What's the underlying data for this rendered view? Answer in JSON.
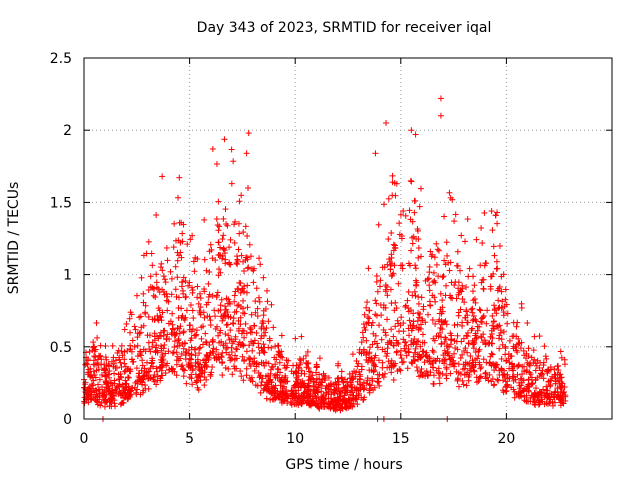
{
  "chart_data": {
    "type": "scatter",
    "title": "Day 343 of 2023, SRMTID for receiver iqal",
    "xlabel": "GPS time / hours",
    "ylabel": "SRMTID / TECUs",
    "xlim": [
      0,
      25
    ],
    "ylim": [
      0,
      2.5
    ],
    "xticks": [
      "0",
      "5",
      "10",
      "15",
      "20"
    ],
    "yticks": [
      "0",
      "0.5",
      "1",
      "1.5",
      "2",
      "2.5"
    ],
    "grid": true,
    "marker": "+",
    "color": "#ff0000",
    "series_name": "SRMTID",
    "density_profile_hours_vs_level": [
      [
        0.0,
        0.26
      ],
      [
        0.5,
        0.3
      ],
      [
        1.0,
        0.22
      ],
      [
        1.5,
        0.24
      ],
      [
        2.0,
        0.28
      ],
      [
        2.5,
        0.38
      ],
      [
        3.0,
        0.52
      ],
      [
        3.5,
        0.62
      ],
      [
        4.0,
        0.7
      ],
      [
        4.5,
        0.78
      ],
      [
        5.0,
        0.64
      ],
      [
        5.5,
        0.52
      ],
      [
        6.0,
        0.72
      ],
      [
        6.5,
        0.82
      ],
      [
        7.0,
        0.78
      ],
      [
        7.5,
        0.74
      ],
      [
        8.0,
        0.66
      ],
      [
        8.5,
        0.42
      ],
      [
        9.0,
        0.3
      ],
      [
        9.5,
        0.26
      ],
      [
        10.0,
        0.25
      ],
      [
        10.5,
        0.24
      ],
      [
        11.0,
        0.2
      ],
      [
        11.5,
        0.17
      ],
      [
        12.0,
        0.16
      ],
      [
        12.5,
        0.18
      ],
      [
        13.0,
        0.26
      ],
      [
        13.5,
        0.5
      ],
      [
        14.0,
        0.62
      ],
      [
        14.5,
        0.72
      ],
      [
        15.0,
        0.82
      ],
      [
        15.5,
        0.92
      ],
      [
        16.0,
        0.68
      ],
      [
        16.5,
        0.62
      ],
      [
        17.0,
        0.7
      ],
      [
        17.5,
        0.64
      ],
      [
        18.0,
        0.62
      ],
      [
        18.5,
        0.56
      ],
      [
        19.0,
        0.6
      ],
      [
        19.5,
        0.62
      ],
      [
        20.0,
        0.46
      ],
      [
        20.5,
        0.36
      ],
      [
        21.0,
        0.3
      ],
      [
        21.5,
        0.26
      ],
      [
        22.0,
        0.22
      ],
      [
        22.5,
        0.24
      ],
      [
        22.8,
        0.22
      ]
    ],
    "highlighted_points": [
      [
        3.7,
        1.68
      ],
      [
        6.1,
        1.87
      ],
      [
        7.0,
        1.63
      ],
      [
        7.8,
        1.98
      ],
      [
        7.7,
        1.84
      ],
      [
        14.3,
        2.05
      ],
      [
        15.5,
        2.0
      ],
      [
        15.7,
        1.97
      ],
      [
        16.9,
        2.22
      ],
      [
        16.9,
        2.1
      ],
      [
        13.8,
        1.84
      ],
      [
        19.3,
        1.44
      ],
      [
        19.5,
        1.41
      ],
      [
        4.6,
        1.36
      ],
      [
        0.9,
        0.0
      ],
      [
        13.9,
        0.0
      ],
      [
        14.2,
        0.0
      ],
      [
        17.2,
        0.0
      ]
    ]
  }
}
